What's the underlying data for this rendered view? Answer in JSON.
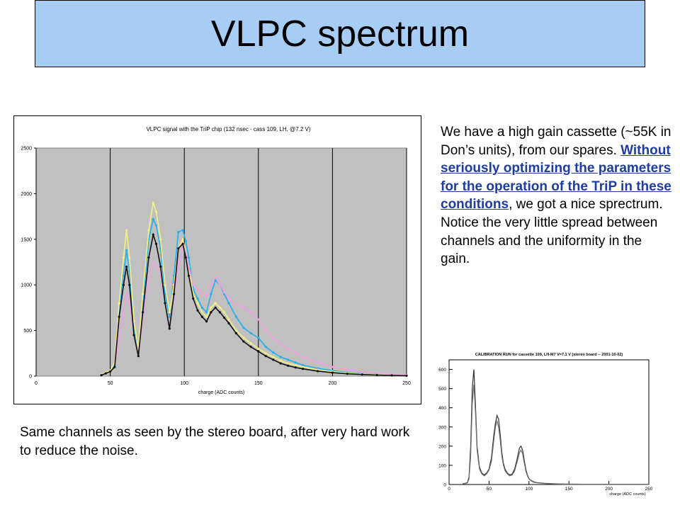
{
  "slide": {
    "title": "VLPC spectrum",
    "description": {
      "part1": "We have a high gain cassette (~55K in Don’s units), from our spares. ",
      "link": "Without seriously optimizing the parameters for the operation of the TriP in these conditions",
      "part2": ", we got a nice sprectrum. Notice the very little spread between channels and the uniformity in the gain."
    },
    "caption": "Same channels as seen by the stereo board, after very hard work to reduce the noise."
  },
  "colors": {
    "title_bg": "#a8cdf5",
    "plot_bg": "#c0c0c0",
    "link": "#1f3e9c"
  },
  "chart_data": [
    {
      "type": "line",
      "title": "VLPC signal with the TriP chip (132 nsec - cass 109, LH, @7.2 V)",
      "xlabel": "charge (ADC counts)",
      "ylabel": "",
      "xlim": [
        0,
        250
      ],
      "ylim": [
        0,
        2500
      ],
      "xticks": [
        "0",
        "50",
        "100",
        "150",
        "200",
        "250"
      ],
      "yticks": [
        "0",
        "500",
        "1000",
        "1500",
        "2000",
        "2500"
      ],
      "grid": "vertical",
      "legend": "none",
      "x": [
        44,
        47,
        50,
        53,
        56,
        59,
        61,
        63,
        66,
        69,
        72,
        76,
        79,
        81,
        84,
        87,
        90,
        93,
        96,
        99,
        101,
        103,
        106,
        109,
        112,
        115,
        118,
        121,
        124,
        127,
        130,
        135,
        140,
        145,
        150,
        155,
        160,
        165,
        170,
        175,
        180,
        190,
        200,
        210,
        220,
        230,
        240,
        250
      ],
      "series": [
        {
          "color": "#20b0f0",
          "values": [
            20,
            40,
            60,
            120,
            700,
            1100,
            1380,
            1150,
            500,
            250,
            800,
            1500,
            1720,
            1650,
            1400,
            900,
            650,
            1100,
            1580,
            1600,
            1480,
            1300,
            950,
            850,
            750,
            700,
            900,
            1050,
            1000,
            900,
            800,
            650,
            530,
            470,
            420,
            320,
            260,
            210,
            180,
            150,
            120,
            85,
            60,
            40,
            28,
            18,
            12,
            8
          ]
        },
        {
          "color": "#f5f080",
          "values": [
            20,
            40,
            60,
            150,
            800,
            1300,
            1600,
            1300,
            600,
            300,
            900,
            1600,
            1900,
            1800,
            1500,
            1000,
            700,
            1000,
            1400,
            1500,
            1350,
            1200,
            900,
            800,
            700,
            650,
            750,
            800,
            750,
            700,
            620,
            500,
            420,
            360,
            300,
            250,
            210,
            170,
            140,
            120,
            100,
            70,
            50,
            35,
            24,
            16,
            10,
            6
          ]
        },
        {
          "color": "#f0a0e0",
          "values": [
            15,
            30,
            50,
            100,
            400,
            700,
            900,
            800,
            450,
            250,
            600,
            1050,
            1250,
            1200,
            1100,
            800,
            550,
            850,
            1200,
            1450,
            1350,
            1200,
            1000,
            950,
            900,
            880,
            1000,
            1080,
            1000,
            920,
            850,
            780,
            750,
            700,
            620,
            500,
            420,
            350,
            300,
            260,
            210,
            150,
            100,
            70,
            50,
            30,
            20,
            12
          ]
        },
        {
          "color": "#101010",
          "values": [
            10,
            30,
            50,
            100,
            650,
            1000,
            1200,
            1000,
            450,
            220,
            700,
            1300,
            1550,
            1450,
            1200,
            800,
            520,
            900,
            1400,
            1450,
            1300,
            1100,
            850,
            720,
            650,
            600,
            700,
            750,
            700,
            640,
            580,
            470,
            380,
            320,
            270,
            220,
            180,
            140,
            115,
            95,
            80,
            55,
            38,
            26,
            18,
            12,
            8,
            5
          ]
        }
      ]
    },
    {
      "type": "line",
      "title": "CALIBRATION RUN for cassette 109, LH-M7 V=7.1 V (stereo board -- 2001-10-02)",
      "xlabel": "charge (ADC counts)",
      "ylabel": "",
      "xlim": [
        0,
        250
      ],
      "ylim": [
        0,
        650
      ],
      "xticks": [
        "0",
        "50",
        "100",
        "150",
        "200",
        "250"
      ],
      "yticks": [
        "0",
        "100",
        "200",
        "300",
        "400",
        "500",
        "600"
      ],
      "grid": "none",
      "legend": "none",
      "x": [
        17,
        20,
        23,
        25,
        27,
        29,
        31,
        33,
        35,
        38,
        41,
        44,
        47,
        50,
        53,
        56,
        58,
        60,
        62,
        64,
        66,
        68,
        70,
        73,
        76,
        79,
        82,
        85,
        88,
        90,
        92,
        94,
        96,
        98,
        100,
        103,
        106,
        110,
        115,
        120,
        125,
        130,
        140,
        150,
        160,
        170,
        180,
        190,
        200,
        210,
        220,
        230,
        240,
        250
      ],
      "series": [
        {
          "color": "#303030",
          "values": [
            4,
            6,
            10,
            40,
            200,
            500,
            600,
            420,
            200,
            90,
            60,
            50,
            60,
            80,
            140,
            260,
            320,
            360,
            340,
            260,
            170,
            110,
            80,
            60,
            50,
            55,
            80,
            130,
            190,
            200,
            180,
            130,
            80,
            50,
            30,
            20,
            14,
            10,
            8,
            6,
            5,
            4,
            3,
            2,
            2,
            1,
            1,
            1,
            1,
            1,
            1,
            1,
            1,
            1
          ]
        },
        {
          "color": "#707070",
          "values": [
            3,
            5,
            8,
            30,
            150,
            420,
            520,
            380,
            180,
            80,
            55,
            45,
            55,
            75,
            120,
            230,
            300,
            330,
            300,
            230,
            150,
            100,
            72,
            55,
            45,
            50,
            70,
            115,
            165,
            180,
            160,
            115,
            70,
            45,
            28,
            18,
            12,
            9,
            7,
            5,
            4,
            3,
            2,
            2,
            1,
            1,
            1,
            1,
            1,
            1,
            1,
            1,
            1,
            1
          ]
        }
      ]
    }
  ]
}
